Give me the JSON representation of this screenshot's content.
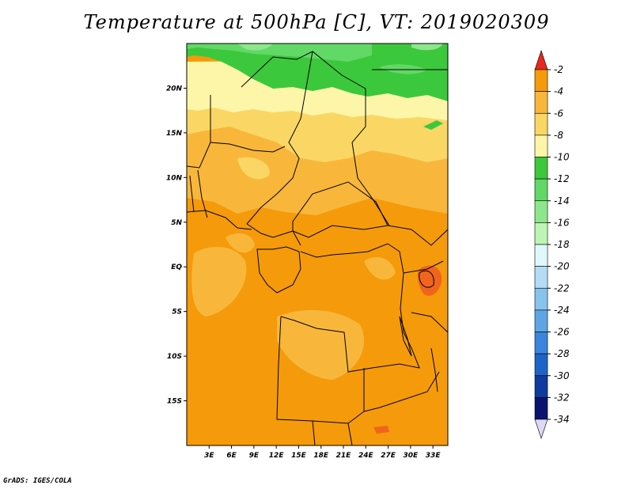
{
  "title": "Temperature at 500hPa [C], VT: 2019020309",
  "credit": "GrADS: IGES/COLA",
  "map": {
    "lon_range": [
      0,
      35
    ],
    "lat_range": [
      -20,
      25
    ],
    "x_ticks": [
      {
        "lon": 3,
        "label": "3E"
      },
      {
        "lon": 6,
        "label": "6E"
      },
      {
        "lon": 9,
        "label": "9E"
      },
      {
        "lon": 12,
        "label": "12E"
      },
      {
        "lon": 15,
        "label": "15E"
      },
      {
        "lon": 18,
        "label": "18E"
      },
      {
        "lon": 21,
        "label": "21E"
      },
      {
        "lon": 24,
        "label": "24E"
      },
      {
        "lon": 27,
        "label": "27E"
      },
      {
        "lon": 30,
        "label": "30E"
      },
      {
        "lon": 33,
        "label": "33E"
      }
    ],
    "y_ticks": [
      {
        "lat": 20,
        "label": "20N"
      },
      {
        "lat": 15,
        "label": "15N"
      },
      {
        "lat": 10,
        "label": "10N"
      },
      {
        "lat": 5,
        "label": "5N"
      },
      {
        "lat": 0,
        "label": "EQ"
      },
      {
        "lat": -5,
        "label": "5S"
      },
      {
        "lat": -10,
        "label": "10S"
      },
      {
        "lat": -15,
        "label": "15S"
      }
    ]
  },
  "colorbar": {
    "levels": [
      {
        "label": "-2",
        "color": "#f0641e"
      },
      {
        "label": "-4",
        "color": "#f59a0a"
      },
      {
        "label": "-6",
        "color": "#f8b73b"
      },
      {
        "label": "-8",
        "color": "#fad764"
      },
      {
        "label": "-10",
        "color": "#fdf6a8"
      },
      {
        "label": "-12",
        "color": "#3cc83c"
      },
      {
        "label": "-14",
        "color": "#62d866"
      },
      {
        "label": "-16",
        "color": "#8ee68c"
      },
      {
        "label": "-18",
        "color": "#bdf5b4"
      },
      {
        "label": "-20",
        "color": "#e0f8fb"
      },
      {
        "label": "-22",
        "color": "#b4dcf4"
      },
      {
        "label": "-24",
        "color": "#88c3ee"
      },
      {
        "label": "-26",
        "color": "#5ea5e6"
      },
      {
        "label": "-28",
        "color": "#3a85dd"
      },
      {
        "label": "-30",
        "color": "#1e64c8"
      },
      {
        "label": "-32",
        "color": "#0e3c9e"
      },
      {
        "label": "-34",
        "color": "#0a1470"
      }
    ],
    "top_arrow_color": "#e8281e",
    "bottom_arrow_color": "#ddd8f4"
  }
}
